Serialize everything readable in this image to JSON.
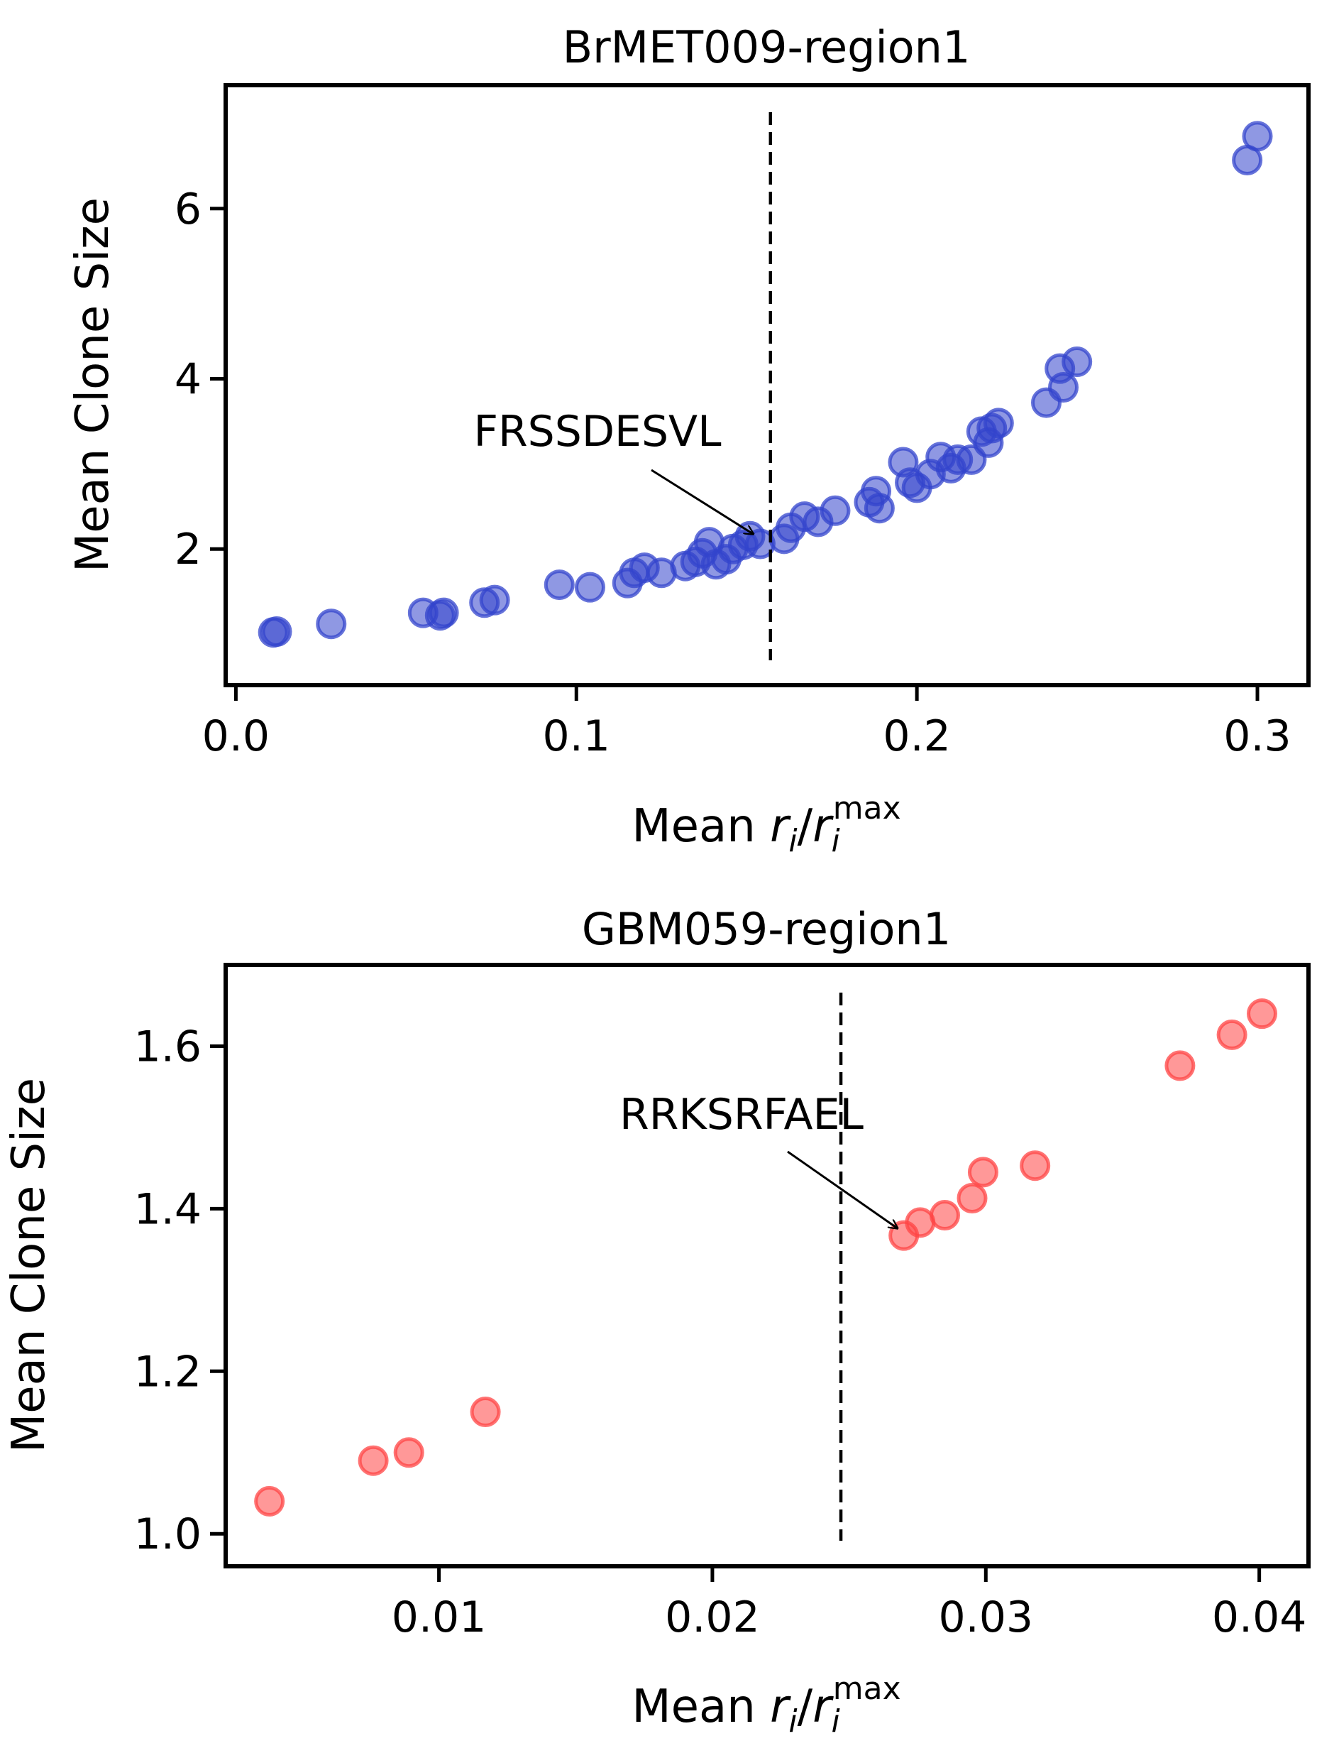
{
  "chart_data": [
    {
      "type": "scatter",
      "title": "BrMET009-region1",
      "xlabel": "Mean r_i/r_i^max",
      "ylabel": "Mean Clone Size",
      "xlim": [
        -0.003,
        0.315
      ],
      "ylim": [
        0.4,
        7.45
      ],
      "xticks": [
        0.0,
        0.1,
        0.2,
        0.3
      ],
      "xtick_labels": [
        "0.0",
        "0.1",
        "0.2",
        "0.3"
      ],
      "yticks": [
        2,
        4,
        6
      ],
      "ytick_labels": [
        "2",
        "4",
        "6"
      ],
      "grid": false,
      "color": "#3344cc",
      "threshold_x": 0.157,
      "annotation": {
        "text": "FRSSDESVL",
        "x": 0.153,
        "y": 2.12
      },
      "points": [
        [
          0.011,
          1.02
        ],
        [
          0.012,
          1.03
        ],
        [
          0.028,
          1.12
        ],
        [
          0.055,
          1.25
        ],
        [
          0.06,
          1.22
        ],
        [
          0.061,
          1.25
        ],
        [
          0.073,
          1.37
        ],
        [
          0.076,
          1.4
        ],
        [
          0.095,
          1.58
        ],
        [
          0.104,
          1.55
        ],
        [
          0.115,
          1.6
        ],
        [
          0.117,
          1.72
        ],
        [
          0.12,
          1.78
        ],
        [
          0.125,
          1.72
        ],
        [
          0.132,
          1.8
        ],
        [
          0.135,
          1.85
        ],
        [
          0.137,
          1.95
        ],
        [
          0.139,
          2.08
        ],
        [
          0.141,
          1.82
        ],
        [
          0.144,
          1.88
        ],
        [
          0.146,
          2.0
        ],
        [
          0.149,
          2.05
        ],
        [
          0.151,
          2.15
        ],
        [
          0.154,
          2.06
        ],
        [
          0.161,
          2.12
        ],
        [
          0.163,
          2.25
        ],
        [
          0.167,
          2.38
        ],
        [
          0.171,
          2.32
        ],
        [
          0.176,
          2.45
        ],
        [
          0.186,
          2.55
        ],
        [
          0.188,
          2.68
        ],
        [
          0.189,
          2.48
        ],
        [
          0.196,
          3.02
        ],
        [
          0.198,
          2.78
        ],
        [
          0.2,
          2.72
        ],
        [
          0.204,
          2.88
        ],
        [
          0.207,
          3.08
        ],
        [
          0.21,
          2.95
        ],
        [
          0.212,
          3.05
        ],
        [
          0.216,
          3.05
        ],
        [
          0.219,
          3.38
        ],
        [
          0.221,
          3.25
        ],
        [
          0.222,
          3.42
        ],
        [
          0.224,
          3.48
        ],
        [
          0.238,
          3.72
        ],
        [
          0.243,
          3.9
        ],
        [
          0.242,
          4.12
        ],
        [
          0.247,
          4.2
        ],
        [
          0.297,
          6.57
        ],
        [
          0.3,
          6.85
        ]
      ]
    },
    {
      "type": "scatter",
      "title": "GBM059-region1",
      "xlabel": "Mean r_i/r_i^max",
      "ylabel": "Mean Clone Size",
      "xlim": [
        0.0022,
        0.0418
      ],
      "ylim": [
        0.96,
        1.7
      ],
      "xticks": [
        0.01,
        0.02,
        0.03,
        0.04
      ],
      "xtick_labels": [
        "0.01",
        "0.02",
        "0.03",
        "0.04"
      ],
      "yticks": [
        1.0,
        1.2,
        1.4,
        1.6
      ],
      "ytick_labels": [
        "1.0",
        "1.2",
        "1.4",
        "1.6"
      ],
      "grid": false,
      "color": "#ff4444",
      "threshold_x": 0.0247,
      "annotation": {
        "text": "RRKSRFAEL",
        "x": 0.0269,
        "y": 1.37
      },
      "points": [
        [
          0.0038,
          1.04
        ],
        [
          0.0076,
          1.09
        ],
        [
          0.0089,
          1.1
        ],
        [
          0.0117,
          1.15
        ],
        [
          0.027,
          1.367
        ],
        [
          0.0276,
          1.383
        ],
        [
          0.0285,
          1.392
        ],
        [
          0.0295,
          1.413
        ],
        [
          0.0299,
          1.445
        ],
        [
          0.0318,
          1.453
        ],
        [
          0.0371,
          1.576
        ],
        [
          0.039,
          1.614
        ],
        [
          0.0401,
          1.64
        ]
      ]
    }
  ]
}
